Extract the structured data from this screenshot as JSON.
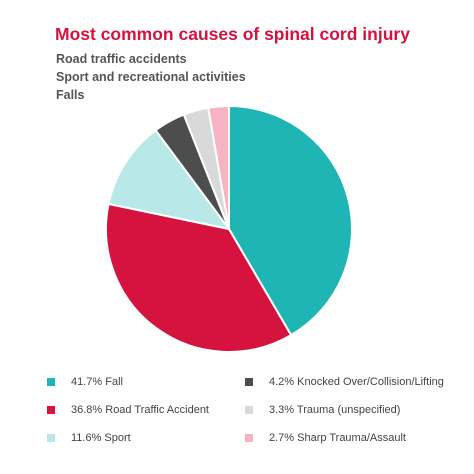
{
  "colors": {
    "title": "#d6123f",
    "teal": "#1fb5b5",
    "red": "#d6123f",
    "lightblue": "#b8e8e8",
    "darkgray": "#4d4d4d",
    "lightgray": "#d9d9d9",
    "pink": "#f5b3c3"
  },
  "chart_data": {
    "type": "pie",
    "title": "Most common causes of spinal cord injury",
    "subtitles": [
      "Road traffic accidents",
      "Sport and recreational activities",
      "Falls"
    ],
    "slices": [
      {
        "label": "41.7% Fall",
        "name": "Fall",
        "value": 41.7,
        "color": "#1fb5b5"
      },
      {
        "label": "36.8% Road Traffic Accident",
        "name": "Road Traffic Accident",
        "value": 36.8,
        "color": "#d6123f"
      },
      {
        "label": "11.6% Sport",
        "name": "Sport",
        "value": 11.6,
        "color": "#b8e8e8"
      },
      {
        "label": "4.2% Knocked Over/Collision/Lifting",
        "name": "Knocked Over/Collision/Lifting",
        "value": 4.2,
        "color": "#4d4d4d"
      },
      {
        "label": "3.3% Trauma (unspecified)",
        "name": "Trauma (unspecified)",
        "value": 3.3,
        "color": "#d9d9d9"
      },
      {
        "label": "2.7% Sharp Trauma/Assault",
        "name": "Sharp Trauma/Assault",
        "value": 2.7,
        "color": "#f5b3c3"
      }
    ],
    "legend_position": "bottom"
  }
}
